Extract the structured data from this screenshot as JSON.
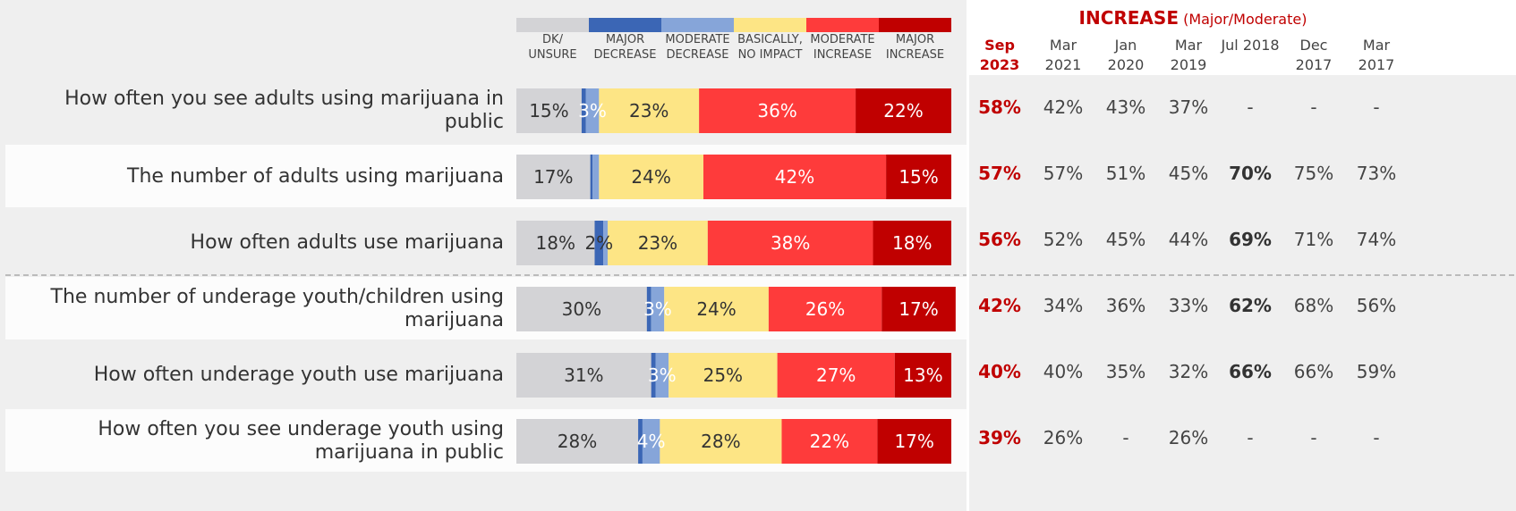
{
  "chart_data": {
    "type": "bar",
    "orientation": "horizontal",
    "stacked": true,
    "categories": [
      "How often you see adults using marijuana in public",
      "The number of adults using marijuana",
      "How often adults use marijuana",
      "The number of underage youth/children using marijuana",
      "How often underage youth use marijuana",
      "How often you see underage youth using marijuana in public"
    ],
    "xlim": [
      0,
      100
    ],
    "series": [
      {
        "name": "DK/ UNSURE",
        "color": "#d3d3d6",
        "values": [
          15,
          17,
          18,
          30,
          31,
          28
        ],
        "value_labels": [
          "15%",
          "17%",
          "18%",
          "30%",
          "31%",
          "28%"
        ]
      },
      {
        "name": "MAJOR DECREASE",
        "color": "#3b66b5",
        "values": [
          1,
          0.5,
          2,
          1,
          1,
          1
        ],
        "value_labels": [
          null,
          null,
          "2%",
          null,
          null,
          null
        ]
      },
      {
        "name": "MODERATE DECREASE",
        "color": "#86a5d9",
        "values": [
          3,
          1.5,
          1,
          3,
          3,
          4
        ],
        "value_labels": [
          "3%",
          null,
          null,
          "3%",
          "3%",
          "4%"
        ]
      },
      {
        "name": "BASICALLY, NO IMPACT",
        "color": "#fde585",
        "values": [
          23,
          24,
          23,
          24,
          25,
          28
        ],
        "value_labels": [
          "23%",
          "24%",
          "23%",
          "24%",
          "25%",
          "28%"
        ]
      },
      {
        "name": "MODERATE INCREASE",
        "color": "#fe3b3b",
        "values": [
          36,
          42,
          38,
          26,
          27,
          22
        ],
        "value_labels": [
          "36%",
          "42%",
          "38%",
          "26%",
          "27%",
          "22%"
        ]
      },
      {
        "name": "MAJOR INCREASE",
        "color": "#c00000",
        "values": [
          22,
          15,
          18,
          17,
          13,
          17
        ],
        "value_labels": [
          "22%",
          "15%",
          "18%",
          "17%",
          "13%",
          "17%"
        ]
      }
    ]
  },
  "table": {
    "title": "INCREASE",
    "subtitle": "(Major/Moderate)",
    "columns": [
      "Sep 2023",
      "Mar 2021",
      "Jan 2020",
      "Mar 2019",
      "Jul 2018",
      "Dec 2017",
      "Mar 2017"
    ],
    "rows": [
      [
        "58%",
        "42%",
        "43%",
        "37%",
        "-",
        "-",
        "-"
      ],
      [
        "57%",
        "57%",
        "51%",
        "45%",
        "70%",
        "75%",
        "73%"
      ],
      [
        "56%",
        "52%",
        "45%",
        "44%",
        "69%",
        "71%",
        "74%"
      ],
      [
        "42%",
        "34%",
        "36%",
        "33%",
        "62%",
        "68%",
        "56%"
      ],
      [
        "40%",
        "40%",
        "35%",
        "32%",
        "66%",
        "66%",
        "59%"
      ],
      [
        "39%",
        "26%",
        "-",
        "26%",
        "-",
        "-",
        "-"
      ]
    ],
    "bold": [
      [
        1,
        4
      ],
      [
        2,
        4
      ],
      [
        3,
        4
      ],
      [
        4,
        4
      ]
    ]
  }
}
